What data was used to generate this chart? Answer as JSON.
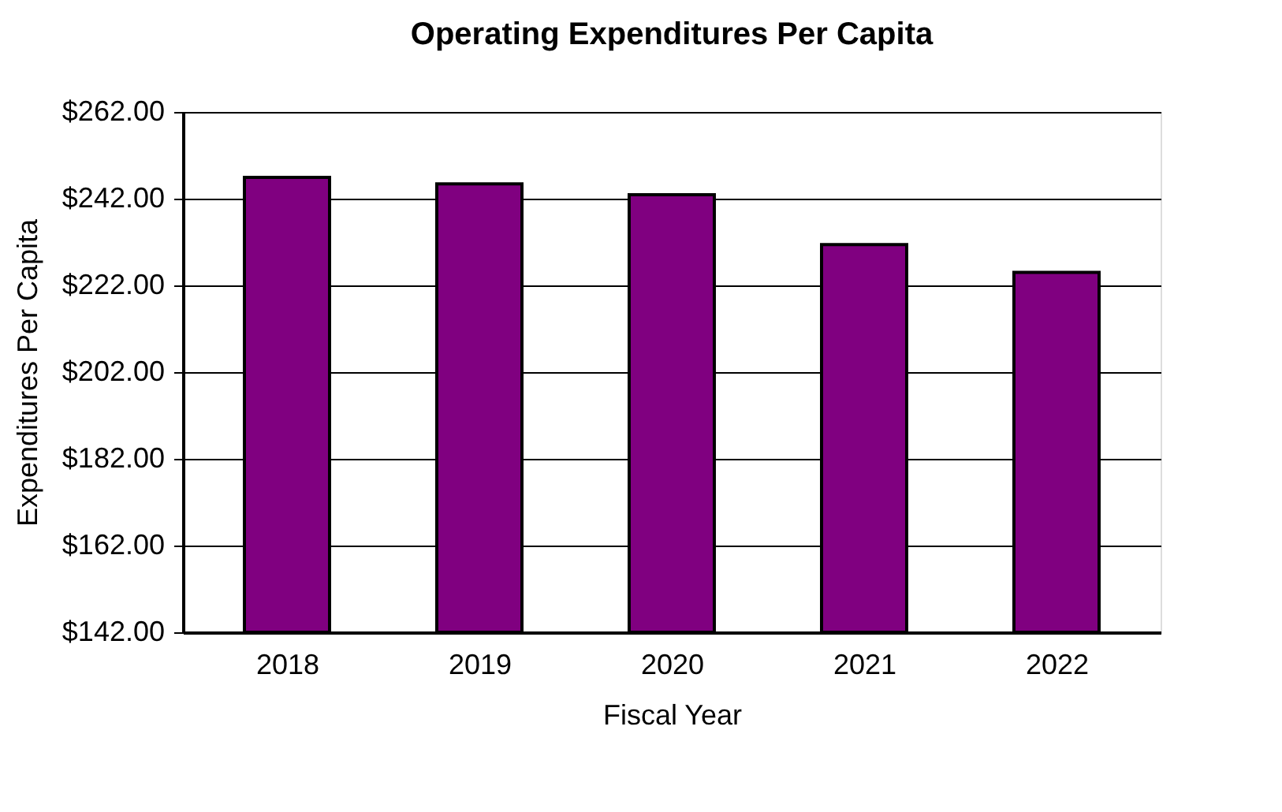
{
  "chart_data": {
    "type": "bar",
    "title": "Operating Expenditures Per Capita",
    "xlabel": "Fiscal Year",
    "ylabel": "Expenditures Per Capita",
    "categories": [
      "2018",
      "2019",
      "2020",
      "2021",
      "2022"
    ],
    "values": [
      246.9,
      245.4,
      242.9,
      231.4,
      225.0
    ],
    "color": "#800080",
    "ylim": [
      142,
      262
    ],
    "yticks": [
      {
        "value": 142,
        "label": "$142.00"
      },
      {
        "value": 162,
        "label": "$162.00"
      },
      {
        "value": 182,
        "label": "$182.00"
      },
      {
        "value": 202,
        "label": "$202.00"
      },
      {
        "value": 222,
        "label": "$222.00"
      },
      {
        "value": 242,
        "label": "$242.00"
      },
      {
        "value": 262,
        "label": "$262.00"
      }
    ],
    "grid": "y"
  }
}
